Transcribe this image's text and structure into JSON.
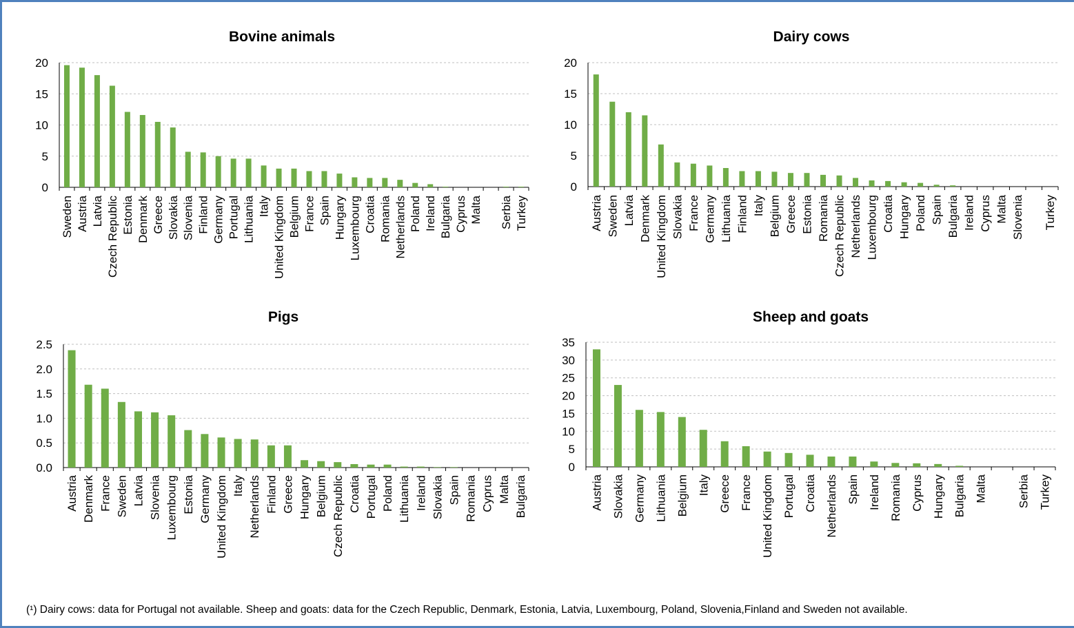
{
  "footnote": "(¹) Dairy cows: data for Portugal not available. Sheep and goats: data for the Czech Republic, Denmark, Estonia, Latvia, Luxembourg, Poland, Slovenia,Finland and Sweden not available.",
  "colors": {
    "bar": "#70ad47",
    "frame": "#4f81bd"
  },
  "chart_data": [
    {
      "type": "bar",
      "title": "Bovine animals",
      "categories": [
        "Sweden",
        "Austria",
        "Latvia",
        "Czech Republic",
        "Estonia",
        "Denmark",
        "Greece",
        "Slovakia",
        "Slovenia",
        "Finland",
        "Germany",
        "Portugal",
        "Lithuania",
        "Italy",
        "United Kingdom",
        "Belgium",
        "France",
        "Spain",
        "Hungary",
        "Luxembourg",
        "Croatia",
        "Romania",
        "Netherlands",
        "Poland",
        "Ireland",
        "Bulgaria",
        "Cyprus",
        "Malta",
        "",
        "Serbia",
        "Turkey"
      ],
      "values": [
        19.6,
        19.2,
        18.0,
        16.3,
        12.1,
        11.6,
        10.5,
        9.6,
        5.7,
        5.6,
        5.0,
        4.6,
        4.6,
        3.5,
        3.0,
        3.0,
        2.6,
        2.6,
        2.2,
        1.6,
        1.5,
        1.5,
        1.2,
        0.7,
        0.5,
        0.1,
        0,
        0,
        0,
        0.1,
        0.1
      ],
      "yticks": [
        0,
        5,
        10,
        15,
        20
      ],
      "ylim": [
        0,
        20
      ],
      "grid": true
    },
    {
      "type": "bar",
      "title": "Dairy cows",
      "categories": [
        "Austria",
        "Sweden",
        "Latvia",
        "Denmark",
        "United Kingdom",
        "Slovakia",
        "France",
        "Germany",
        "Lithuania",
        "Finland",
        "Italy",
        "Belgium",
        "Greece",
        "Estonia",
        "Romania",
        "Czech Republic",
        "Netherlands",
        "Luxembourg",
        "Croatia",
        "Hungary",
        "Poland",
        "Spain",
        "Bulgaria",
        "Ireland",
        "Cyprus",
        "Malta",
        "Slovenia",
        "",
        "Turkey"
      ],
      "values": [
        18.1,
        13.7,
        12.0,
        11.5,
        6.8,
        3.9,
        3.7,
        3.4,
        3.0,
        2.5,
        2.5,
        2.4,
        2.2,
        2.2,
        1.9,
        1.8,
        1.4,
        1.0,
        0.9,
        0.7,
        0.6,
        0.3,
        0.2,
        0,
        0,
        0,
        0,
        0,
        0
      ],
      "yticks": [
        0,
        5,
        10,
        15,
        20
      ],
      "ylim": [
        0,
        20
      ],
      "grid": true
    },
    {
      "type": "bar",
      "title": "Pigs",
      "categories": [
        "Austria",
        "Denmark",
        "France",
        "Sweden",
        "Latvia",
        "Slovenia",
        "Luxembourg",
        "Estonia",
        "Germany",
        "United Kingdom",
        "Italy",
        "Netherlands",
        "Finland",
        "Greece",
        "Hungary",
        "Belgium",
        "Czech Republic",
        "Croatia",
        "Portugal",
        "Poland",
        "Lithuania",
        "Ireland",
        "Slovakia",
        "Spain",
        "Romania",
        "Cyprus",
        "Malta",
        "Bulgaria"
      ],
      "values": [
        2.38,
        1.68,
        1.6,
        1.33,
        1.14,
        1.12,
        1.06,
        0.76,
        0.68,
        0.61,
        0.58,
        0.57,
        0.45,
        0.45,
        0.15,
        0.13,
        0.11,
        0.07,
        0.06,
        0.06,
        0.02,
        0.02,
        0.01,
        0.01,
        0,
        0,
        0,
        0
      ],
      "yticks": [
        "0.0",
        "0.5",
        "1.0",
        "1.5",
        "2.0",
        "2.5"
      ],
      "ylim": [
        0,
        2.5
      ],
      "grid": true
    },
    {
      "type": "bar",
      "title": "Sheep and goats",
      "categories": [
        "Austria",
        "Slovakia",
        "Germany",
        "Lithuania",
        "Belgium",
        "Italy",
        "Greece",
        "France",
        "United Kingdom",
        "Portugal",
        "Croatia",
        "Netherlands",
        "Spain",
        "Ireland",
        "Romania",
        "Cyprus",
        "Hungary",
        "Bulgaria",
        "Malta",
        "",
        "Serbia",
        "Turkey"
      ],
      "values": [
        33,
        23,
        16,
        15.4,
        14,
        10.4,
        7.2,
        5.8,
        4.3,
        3.9,
        3.4,
        2.9,
        2.9,
        1.5,
        1.1,
        1.0,
        0.8,
        0.3,
        0,
        0,
        0,
        0
      ],
      "yticks": [
        0,
        5,
        10,
        15,
        20,
        25,
        30,
        35
      ],
      "ylim": [
        0,
        35
      ],
      "grid": true
    }
  ]
}
